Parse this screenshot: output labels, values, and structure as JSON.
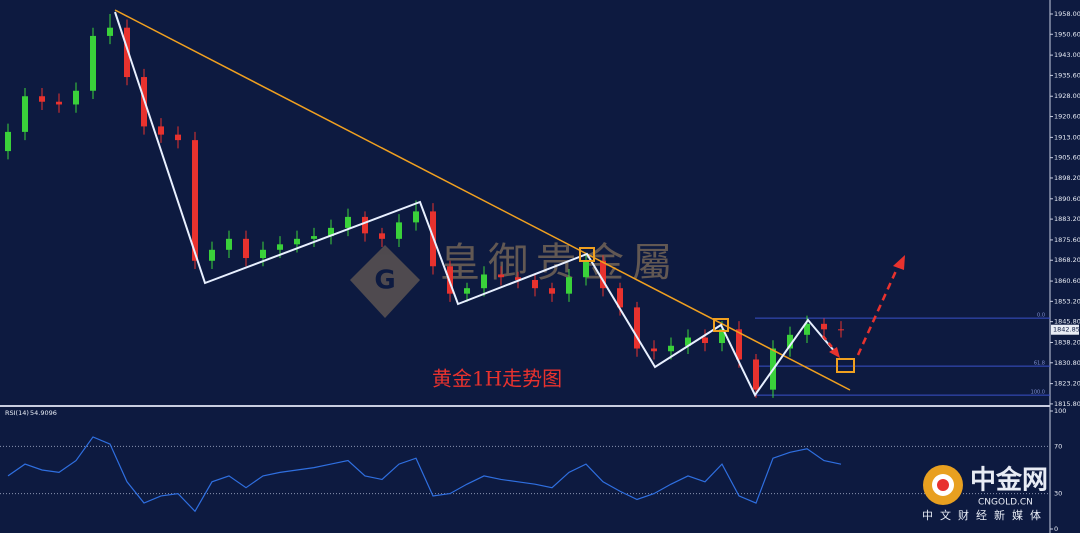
{
  "chart_data": {
    "type": "candlestick",
    "title": "黄金1H走势图",
    "watermark": "皇御贵金屬",
    "up_color": "#3ad13a",
    "down_color": "#e8322e",
    "open": [
      1908,
      1915,
      1928,
      1926,
      1925,
      1930,
      1950,
      1953,
      1935,
      1917,
      1914,
      1912,
      1868,
      1872,
      1876,
      1869,
      1872,
      1874,
      1876,
      1877,
      1880,
      1884,
      1878,
      1876,
      1882,
      1886,
      1866,
      1856,
      1858,
      1863,
      1862,
      1861,
      1858,
      1856,
      1862,
      1868,
      1858,
      1851,
      1836,
      1835,
      1837,
      1840,
      1838,
      1843,
      1832,
      1821,
      1836,
      1841,
      1845,
      1843
    ],
    "high": [
      1918,
      1931,
      1931,
      1929,
      1933,
      1953,
      1958,
      1956,
      1938,
      1920,
      1917,
      1915,
      1875,
      1879,
      1879,
      1875,
      1877,
      1879,
      1880,
      1883,
      1887,
      1886,
      1880,
      1885,
      1890,
      1889,
      1868,
      1860,
      1866,
      1866,
      1864,
      1863,
      1860,
      1865,
      1871,
      1870,
      1860,
      1853,
      1839,
      1840,
      1843,
      1843,
      1846,
      1846,
      1834,
      1839,
      1844,
      1848,
      1847,
      1846
    ],
    "low": [
      1905,
      1912,
      1923,
      1922,
      1922,
      1927,
      1947,
      1932,
      1914,
      1911,
      1909,
      1865,
      1865,
      1869,
      1866,
      1866,
      1869,
      1871,
      1873,
      1874,
      1877,
      1875,
      1873,
      1873,
      1879,
      1863,
      1853,
      1853,
      1855,
      1859,
      1858,
      1855,
      1853,
      1853,
      1859,
      1855,
      1848,
      1833,
      1832,
      1832,
      1834,
      1835,
      1835,
      1829,
      1818,
      1818,
      1833,
      1838,
      1840,
      1840
    ],
    "close": [
      1915,
      1928,
      1926,
      1925,
      1930,
      1950,
      1953,
      1935,
      1917,
      1914,
      1912,
      1868,
      1872,
      1876,
      1869,
      1872,
      1874,
      1876,
      1877,
      1880,
      1884,
      1878,
      1876,
      1882,
      1886,
      1866,
      1856,
      1858,
      1863,
      1862,
      1861,
      1858,
      1856,
      1862,
      1868,
      1858,
      1851,
      1836,
      1835,
      1837,
      1840,
      1838,
      1843,
      1832,
      1821,
      1836,
      1841,
      1845,
      1843,
      1842.85
    ],
    "ylim": [
      1815.4,
      1963.1
    ],
    "yticks": [
      {
        "value": 1958,
        "label": "1958.00"
      },
      {
        "value": 1950.6,
        "label": "1950.60"
      },
      {
        "value": 1943,
        "label": "1943.00"
      },
      {
        "value": 1935.6,
        "label": "1935.60"
      },
      {
        "value": 1928,
        "label": "1928.00"
      },
      {
        "value": 1920.6,
        "label": "1920.60"
      },
      {
        "value": 1913,
        "label": "1913.00"
      },
      {
        "value": 1905.6,
        "label": "1905.60"
      },
      {
        "value": 1898.2,
        "label": "1898.20"
      },
      {
        "value": 1890.6,
        "label": "1890.60"
      },
      {
        "value": 1883.2,
        "label": "1883.20"
      },
      {
        "value": 1875.6,
        "label": "1875.60"
      },
      {
        "value": 1868.2,
        "label": "1868.20"
      },
      {
        "value": 1860.6,
        "label": "1860.60"
      },
      {
        "value": 1853.2,
        "label": "1853.20"
      },
      {
        "value": 1845.8,
        "label": "1845.80"
      },
      {
        "value": 1838.2,
        "label": "1838.20"
      },
      {
        "value": 1830.8,
        "label": "1830.80"
      },
      {
        "value": 1823.2,
        "label": "1823.20"
      },
      {
        "value": 1815.8,
        "label": "1815.80"
      }
    ],
    "fib_levels": [
      {
        "value": 1847.1,
        "label": "0.0"
      },
      {
        "value": 1829.6,
        "label": "61.8"
      },
      {
        "value": 1819.0,
        "label": "100.0"
      }
    ],
    "rsi": {
      "name": "RSI(14)",
      "color": "#2f6fe0",
      "values": [
        45,
        55,
        50,
        48,
        58,
        78,
        72,
        40,
        22,
        28,
        30,
        15,
        40,
        45,
        35,
        45,
        48,
        50,
        52,
        55,
        58,
        45,
        42,
        55,
        60,
        28,
        30,
        38,
        45,
        42,
        40,
        38,
        35,
        48,
        55,
        40,
        32,
        25,
        30,
        38,
        45,
        40,
        55,
        28,
        22,
        60,
        65,
        68,
        58,
        54.9096
      ],
      "ylim": [
        0,
        100
      ],
      "yticks": [
        0,
        30,
        70,
        100
      ]
    }
  },
  "branding": {
    "name": "中金网",
    "site": "CNGOLD.CN",
    "slogan": "中文财经新媒体"
  }
}
